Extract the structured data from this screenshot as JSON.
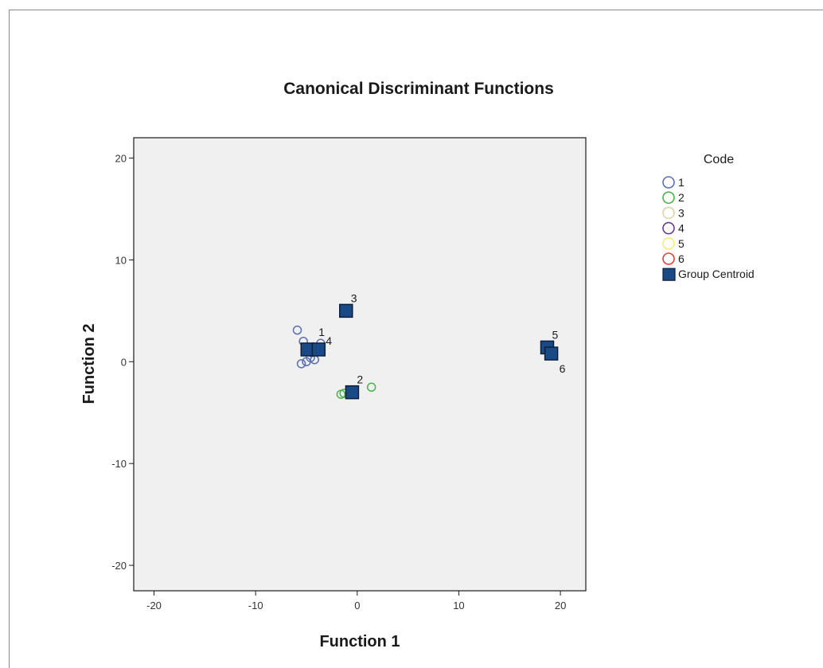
{
  "chart_data": {
    "type": "scatter",
    "title": "Canonical Discriminant Functions",
    "xlabel": "Function 1",
    "ylabel": "Function 2",
    "xlim": [
      -22,
      22.5
    ],
    "ylim": [
      -22.5,
      22
    ],
    "xticks": [
      -20,
      -10,
      0,
      10,
      20
    ],
    "yticks": [
      -20,
      -10,
      0,
      10,
      20
    ],
    "xtick_labels": [
      "-20",
      "-10",
      "0",
      "10",
      "20"
    ],
    "ytick_labels": [
      "-20",
      "-10",
      "0",
      "10",
      "20"
    ],
    "grid": false,
    "plot_background": "#f0f0f0",
    "legend": {
      "title": "Code",
      "placement": "right",
      "entries": [
        {
          "label": "1",
          "marker": "circle",
          "color": "#5b6fb5"
        },
        {
          "label": "2",
          "marker": "circle",
          "color": "#4cb34c"
        },
        {
          "label": "3",
          "marker": "circle",
          "color": "#e0d2a8"
        },
        {
          "label": "4",
          "marker": "circle",
          "color": "#6b3b8c"
        },
        {
          "label": "5",
          "marker": "circle",
          "color": "#f5ec7a"
        },
        {
          "label": "6",
          "marker": "circle",
          "color": "#e0413c"
        },
        {
          "label": "Group Centroid",
          "marker": "square",
          "color": "#1a4a86"
        }
      ]
    },
    "series": [
      {
        "name": "1",
        "marker": "circle",
        "color": "#5b6fb5",
        "points": [
          {
            "x": -5.9,
            "y": 3.1
          },
          {
            "x": -5.3,
            "y": 2.0
          },
          {
            "x": -4.9,
            "y": 1.3
          },
          {
            "x": -4.5,
            "y": 0.9
          },
          {
            "x": -5.5,
            "y": -0.2
          },
          {
            "x": -5.0,
            "y": 0.0
          },
          {
            "x": -4.6,
            "y": 0.4
          },
          {
            "x": -4.2,
            "y": 0.2
          },
          {
            "x": -3.6,
            "y": 1.8
          },
          {
            "x": -4.0,
            "y": 1.2
          }
        ]
      },
      {
        "name": "2",
        "marker": "circle",
        "color": "#4cb34c",
        "points": [
          {
            "x": -1.6,
            "y": -3.2
          },
          {
            "x": -1.3,
            "y": -3.1
          },
          {
            "x": 1.4,
            "y": -2.5
          }
        ]
      },
      {
        "name": "Group Centroid",
        "marker": "square",
        "color": "#1a4a86",
        "points": [
          {
            "x": -4.9,
            "y": 1.2,
            "label": "1"
          },
          {
            "x": -0.5,
            "y": -3.0,
            "label": "2"
          },
          {
            "x": -1.1,
            "y": 5.0,
            "label": "3"
          },
          {
            "x": -3.8,
            "y": 1.2,
            "label": "4"
          },
          {
            "x": 18.7,
            "y": 1.4,
            "label": "5"
          },
          {
            "x": 19.1,
            "y": 0.8,
            "label": "6"
          }
        ]
      }
    ]
  }
}
